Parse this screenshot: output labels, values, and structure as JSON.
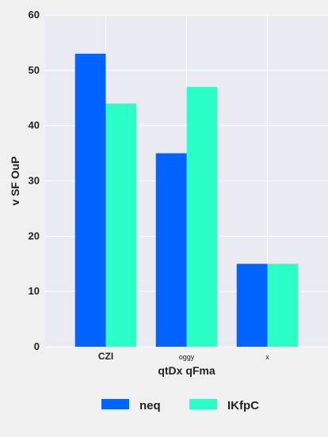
{
  "chart_data": {
    "type": "bar",
    "categories": [
      "CZI",
      "oggy",
      "x"
    ],
    "series": [
      {
        "name": "neq",
        "values": [
          53,
          35,
          15
        ],
        "color": "#0062ff"
      },
      {
        "name": "IKfpC",
        "values": [
          44,
          47,
          15
        ],
        "color": "#2affc8"
      }
    ],
    "xlabel": "qtDx qFma",
    "ylabel": "v SF OuP",
    "ylim": [
      0,
      60
    ],
    "yticks": [
      0,
      10,
      20,
      30,
      40,
      50,
      60
    ],
    "grid": true,
    "legend": "bottom-center",
    "plot_background": "#eaeaf2"
  }
}
